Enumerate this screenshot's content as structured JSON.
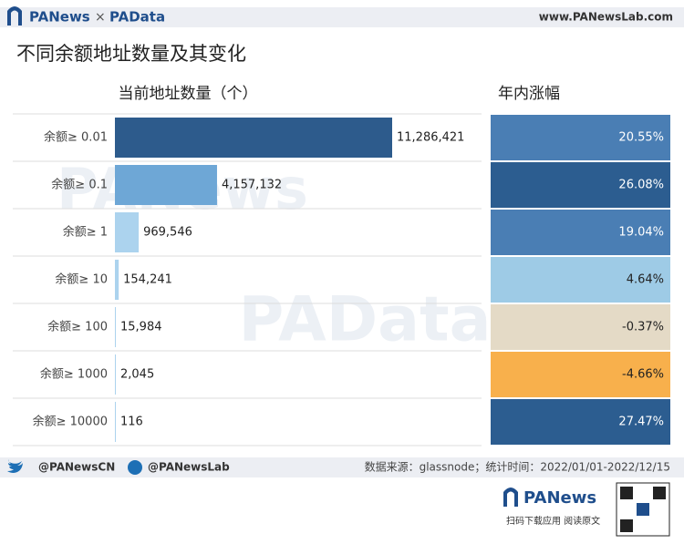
{
  "header": {
    "brand": "PANews",
    "separator": "×",
    "brand2": "PAData",
    "url": "www.PANewsLab.com"
  },
  "chart_data": {
    "type": "bar",
    "orientation": "horizontal",
    "title": "不同余额地址数量及其变化",
    "value_header": "当前地址数量（个）",
    "change_header": "年内涨幅",
    "categories": [
      "余额≥ 0.01",
      "余额≥ 0.1",
      "余额≥ 1",
      "余额≥ 10",
      "余额≥ 100",
      "余额≥ 1000",
      "余额≥ 10000"
    ],
    "values": [
      11286421,
      4157132,
      969546,
      154241,
      15984,
      2045,
      116
    ],
    "value_labels": [
      "11,286,421",
      "4,157,132",
      "969,546",
      "154,241",
      "15,984",
      "2,045",
      "116"
    ],
    "colors": [
      "#2d5b8c",
      "#6ea7d6",
      "#acd3ee",
      "#acd3ee",
      "#acd3ee",
      "#acd3ee",
      "#acd3ee"
    ],
    "changes": [
      20.55,
      26.08,
      19.04,
      4.64,
      -0.37,
      -4.66,
      27.47
    ],
    "change_labels": [
      "20.55%",
      "26.08%",
      "19.04%",
      "4.64%",
      "-0.37%",
      "-4.66%",
      "27.47%"
    ],
    "change_colors": [
      "#4a7eb4",
      "#2c5d90",
      "#4a7eb4",
      "#9ecbe6",
      "#e4dac6",
      "#f8b04c",
      "#2c5d90"
    ]
  },
  "footer": {
    "twitter": "@PANewsCN",
    "facebook": "@PANewsLab",
    "source": "数据来源：glassnode；统计时间：2022/01/01-2022/12/15",
    "app_brand": "PANews",
    "app_caption": "扫码下载应用  阅读原文"
  },
  "watermarks": [
    "PANews",
    "PAData"
  ]
}
